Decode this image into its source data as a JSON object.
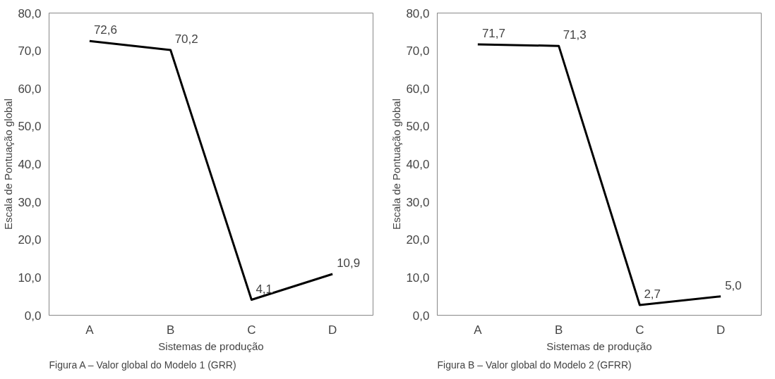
{
  "chart_data": [
    {
      "type": "line",
      "categories": [
        "A",
        "B",
        "C",
        "D"
      ],
      "series": [
        {
          "color": "#000000",
          "values": [
            72.6,
            70.2,
            4.1,
            10.9
          ]
        }
      ],
      "xlabel": "Sistemas de produção",
      "ylabel": "Escala de Pontuação global",
      "ylim": [
        0,
        80
      ],
      "yticks": [
        {
          "value": 0,
          "label": "0,0"
        },
        {
          "value": 10,
          "label": "10,0"
        },
        {
          "value": 20,
          "label": "20,0"
        },
        {
          "value": 30,
          "label": "30,0"
        },
        {
          "value": 40,
          "label": "40,0"
        },
        {
          "value": 50,
          "label": "50,0"
        },
        {
          "value": 60,
          "label": "60,0"
        },
        {
          "value": 70,
          "label": "70,0"
        },
        {
          "value": 80,
          "label": "80,0"
        }
      ],
      "value_labels": [
        "72,6",
        "70,2",
        "4,1",
        "10,9"
      ],
      "grid": false,
      "line_style": "solid",
      "annotations": [
        "Figura A – Valor global do Modelo 1 (GRR)"
      ]
    },
    {
      "type": "line",
      "categories": [
        "A",
        "B",
        "C",
        "D"
      ],
      "series": [
        {
          "color": "#000000",
          "values": [
            71.7,
            71.3,
            2.7,
            5.0
          ]
        }
      ],
      "xlabel": "Sistemas de produção",
      "ylabel": "Escala de Pontuação global",
      "ylim": [
        0,
        80
      ],
      "yticks": [
        {
          "value": 0,
          "label": "0,0"
        },
        {
          "value": 10,
          "label": "10,0"
        },
        {
          "value": 20,
          "label": "20,0"
        },
        {
          "value": 30,
          "label": "30,0"
        },
        {
          "value": 40,
          "label": "40,0"
        },
        {
          "value": 50,
          "label": "50,0"
        },
        {
          "value": 60,
          "label": "60,0"
        },
        {
          "value": 70,
          "label": "70,0"
        },
        {
          "value": 80,
          "label": "80,0"
        }
      ],
      "value_labels": [
        "71,7",
        "71,3",
        "2,7",
        "5,0"
      ],
      "grid": false,
      "line_style": "solid",
      "annotations": [
        "Figura B – Valor global do Modelo 2 (GFRR)"
      ]
    }
  ]
}
